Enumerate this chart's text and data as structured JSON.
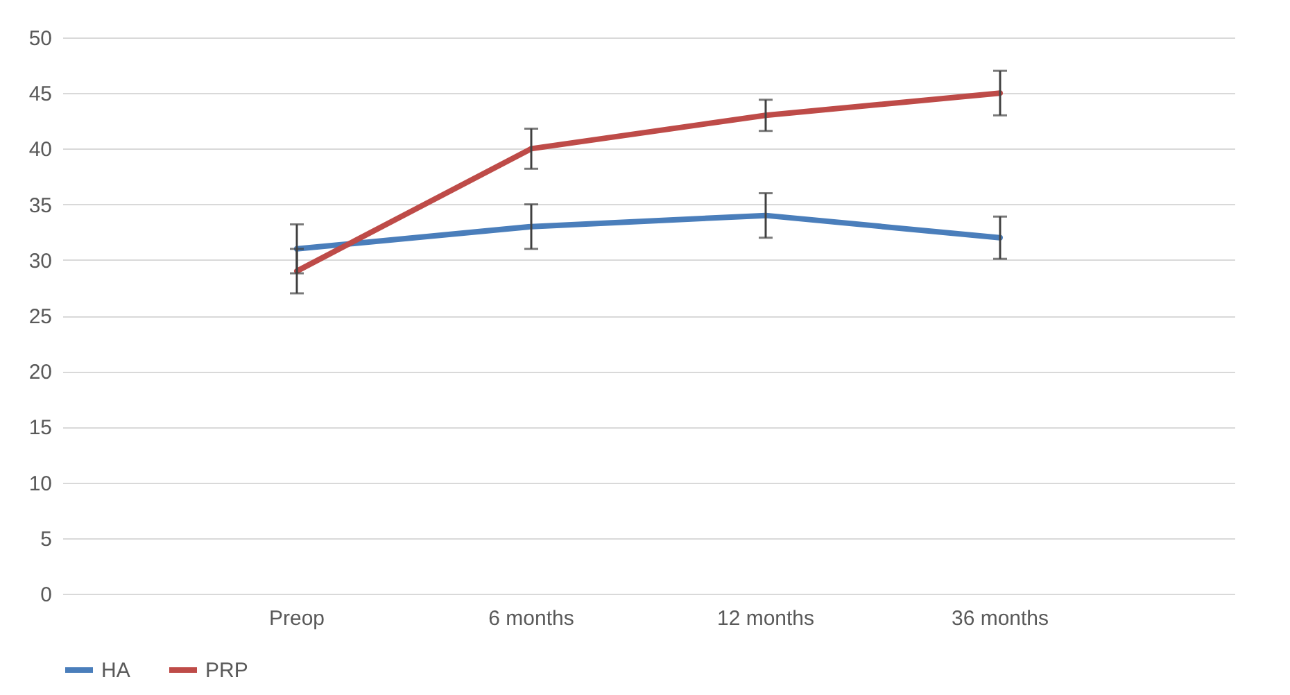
{
  "chart_data": {
    "type": "line",
    "categories": [
      "Preop",
      "6 months",
      "12 months",
      "36 months"
    ],
    "series": [
      {
        "name": "HA",
        "color": "#4a7ebb",
        "values": [
          31,
          33,
          34,
          32
        ],
        "errors": [
          2.2,
          2,
          2,
          1.9
        ]
      },
      {
        "name": "PRP",
        "color": "#be4b48",
        "values": [
          29,
          40,
          43,
          45
        ],
        "errors": [
          2,
          1.8,
          1.4,
          2
        ]
      }
    ],
    "ylim": [
      0,
      50
    ],
    "yticks": [
      0,
      5,
      10,
      15,
      20,
      25,
      30,
      35,
      40,
      45,
      50
    ],
    "grid": "y",
    "legend": "bottom",
    "marker": "none",
    "line_style": "solid"
  }
}
